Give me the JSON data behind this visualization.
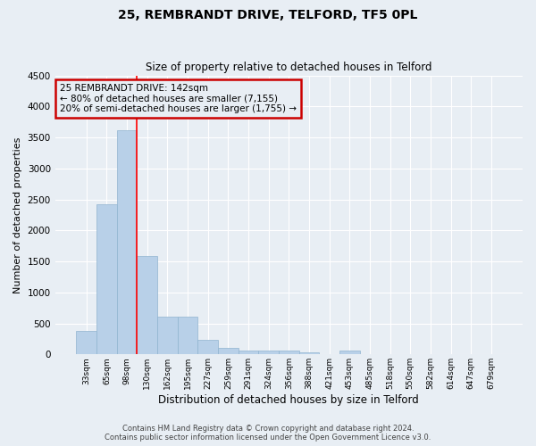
{
  "title": "25, REMBRANDT DRIVE, TELFORD, TF5 0PL",
  "subtitle": "Size of property relative to detached houses in Telford",
  "xlabel": "Distribution of detached houses by size in Telford",
  "ylabel": "Number of detached properties",
  "categories": [
    "33sqm",
    "65sqm",
    "98sqm",
    "130sqm",
    "162sqm",
    "195sqm",
    "227sqm",
    "259sqm",
    "291sqm",
    "324sqm",
    "356sqm",
    "388sqm",
    "421sqm",
    "453sqm",
    "485sqm",
    "518sqm",
    "550sqm",
    "582sqm",
    "614sqm",
    "647sqm",
    "679sqm"
  ],
  "values": [
    380,
    2420,
    3620,
    1580,
    610,
    610,
    230,
    110,
    60,
    55,
    55,
    40,
    0,
    55,
    0,
    0,
    0,
    0,
    0,
    0,
    0
  ],
  "bar_color": "#b8d0e8",
  "bar_edgecolor": "#90b4d0",
  "vline_x_index": 3,
  "annotation_text": "25 REMBRANDT DRIVE: 142sqm\n← 80% of detached houses are smaller (7,155)\n20% of semi-detached houses are larger (1,755) →",
  "annotation_box_color": "#cc0000",
  "ylim": [
    0,
    4500
  ],
  "yticks": [
    0,
    500,
    1000,
    1500,
    2000,
    2500,
    3000,
    3500,
    4000,
    4500
  ],
  "background_color": "#e8eef4",
  "grid_color": "#ffffff",
  "footer_line1": "Contains HM Land Registry data © Crown copyright and database right 2024.",
  "footer_line2": "Contains public sector information licensed under the Open Government Licence v3.0."
}
